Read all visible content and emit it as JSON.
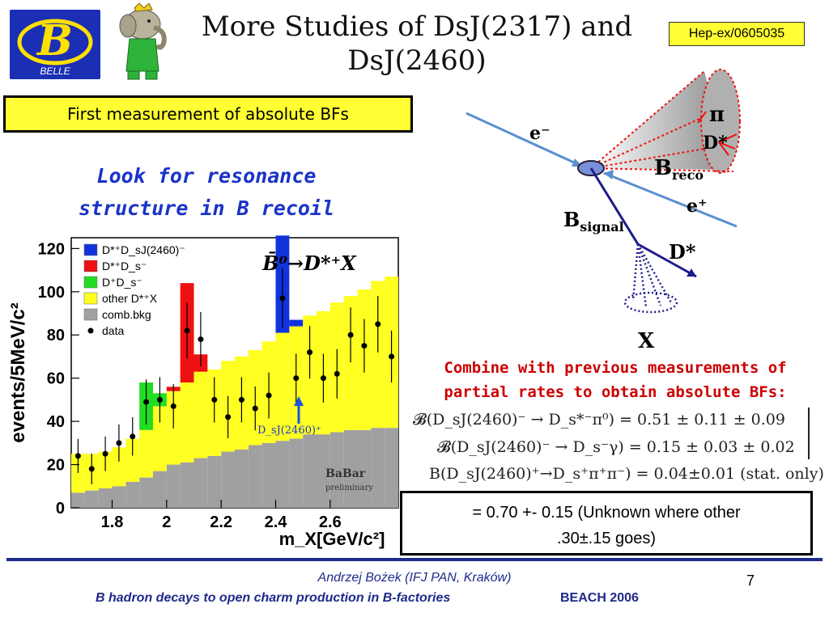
{
  "header": {
    "title_line1": "More Studies of DsJ(2317) and",
    "title_line2": "DsJ(2460)",
    "ref": "Hep-ex/0605035",
    "logo_text": "BELLE"
  },
  "left": {
    "bf_box": "First measurement of absolute BFs",
    "look_line1": "Look for resonance",
    "look_line2": "structure in B recoil"
  },
  "chart_data": {
    "type": "bar",
    "ylabel": "events/5MeV/c²",
    "xlabel": "m_X[GeV/c²]",
    "xlim": [
      1.65,
      2.85
    ],
    "ylim": [
      0,
      125
    ],
    "x_ticks": [
      "1.8",
      "2",
      "2.2",
      "2.4",
      "2.6"
    ],
    "y_ticks": [
      "0",
      "20",
      "40",
      "60",
      "80",
      "100",
      "120"
    ],
    "title": "B̄⁰→D*⁺X",
    "legend": [
      "D*⁺D_sJ(2460)⁻",
      "D*⁺D_s⁻",
      "D⁺D_s⁻",
      "other D*⁺X",
      "comb.bkg",
      "data"
    ],
    "annotation": "D_sJ(2460)⁺",
    "watermark_line1": "BaBar",
    "watermark_line2": "preliminary",
    "bin_edges": [
      1.65,
      1.7,
      1.75,
      1.8,
      1.85,
      1.9,
      1.95,
      2.0,
      2.05,
      2.1,
      2.15,
      2.2,
      2.25,
      2.3,
      2.35,
      2.4,
      2.45,
      2.5,
      2.55,
      2.6,
      2.65,
      2.7,
      2.75,
      2.8,
      2.85
    ],
    "series": [
      {
        "name": "comb.bkg",
        "color": "#a0a0a0",
        "values": [
          7,
          8,
          9,
          10,
          12,
          14,
          17,
          20,
          21,
          23,
          24,
          26,
          27,
          29,
          30,
          31,
          32,
          34,
          34,
          35,
          36,
          36,
          37,
          37
        ]
      },
      {
        "name": "other D*⁺X",
        "color": "#ffff22",
        "values": [
          18,
          17,
          17,
          18,
          20,
          22,
          30,
          34,
          37,
          40,
          40,
          42,
          43,
          44,
          47,
          50,
          52,
          55,
          57,
          60,
          62,
          65,
          68,
          70
        ]
      },
      {
        "name": "D⁺D_s⁻",
        "color": "#22dd22",
        "values": [
          0,
          0,
          0,
          0,
          0,
          22,
          6,
          0,
          0,
          0,
          0,
          0,
          0,
          0,
          0,
          0,
          0,
          0,
          0,
          0,
          0,
          0,
          0,
          0
        ]
      },
      {
        "name": "D*⁺D_s⁻",
        "color": "#ee1111",
        "values": [
          0,
          0,
          0,
          0,
          0,
          0,
          0,
          2,
          46,
          8,
          0,
          0,
          0,
          0,
          0,
          0,
          0,
          0,
          0,
          0,
          0,
          0,
          0,
          0
        ]
      },
      {
        "name": "D*⁺D_sJ(2460)⁻",
        "color": "#1133dd",
        "values": [
          0,
          0,
          0,
          0,
          0,
          0,
          0,
          0,
          0,
          0,
          0,
          0,
          0,
          0,
          0,
          45,
          3,
          0,
          0,
          0,
          0,
          0,
          0,
          0
        ]
      }
    ],
    "data_points": [
      [
        1.675,
        24
      ],
      [
        1.725,
        18
      ],
      [
        1.775,
        25
      ],
      [
        1.825,
        30
      ],
      [
        1.875,
        33
      ],
      [
        1.925,
        49
      ],
      [
        1.975,
        50
      ],
      [
        2.025,
        47
      ],
      [
        2.075,
        82
      ],
      [
        2.125,
        78
      ],
      [
        2.175,
        50
      ],
      [
        2.225,
        42
      ],
      [
        2.275,
        50
      ],
      [
        2.325,
        46
      ],
      [
        2.375,
        52
      ],
      [
        2.425,
        97
      ],
      [
        2.475,
        60
      ],
      [
        2.525,
        72
      ],
      [
        2.575,
        60
      ],
      [
        2.625,
        62
      ],
      [
        2.675,
        80
      ],
      [
        2.725,
        75
      ],
      [
        2.775,
        85
      ],
      [
        2.825,
        70
      ]
    ]
  },
  "diagram": {
    "label_eminus": "e⁻",
    "label_eplus": "e⁺",
    "label_pi": "π",
    "label_dstar_top": "D*",
    "label_breco_main": "B",
    "label_breco_sub": "reco",
    "label_bsignal_main": "B",
    "label_bsignal_sub": "signal",
    "label_dstar_bottom": "D*",
    "label_x": "X"
  },
  "combine": {
    "line1": "Combine with previous measurements of",
    "line2": "partial rates to obtain absolute BFs:"
  },
  "equations": {
    "eq1": "𝓑(D_sJ(2460)⁻ → D_s*⁻π⁰)  =  0.51 ± 0.11 ± 0.09",
    "eq2": "𝓑(D_sJ(2460)⁻ → D_s⁻γ)  =  0.15 ± 0.03 ± 0.02",
    "eq3": "B(D_sJ(2460)⁺→D_s⁺π⁺π⁻) = 0.04±0.01 (stat. only)"
  },
  "result": {
    "line1": "= 0.70 +- 0.15 (Unknown where other",
    "line2": ".30±.15 goes)"
  },
  "footer": {
    "author": "Andrzej Bożek (IFJ PAN, Kraków)",
    "talk": "B hadron decays to open charm production in B-factories",
    "conference": "BEACH 2006",
    "page": "7"
  }
}
